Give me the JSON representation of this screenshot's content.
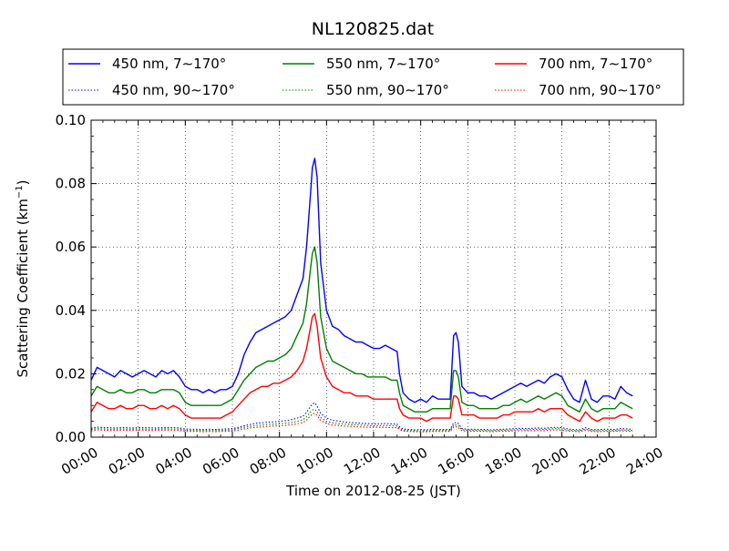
{
  "chart_data": {
    "type": "line",
    "title": "NL120825.dat",
    "xlabel": "Time on 2012-08-25 (JST)",
    "ylabel_prefix": "Scattering Coefficient (km",
    "ylabel_exp": "−1",
    "ylabel_suffix": ")",
    "xlim": [
      0,
      24
    ],
    "ylim": [
      0,
      0.1
    ],
    "x_unit": "hour",
    "grid": true,
    "legend_placement": "top",
    "x_ticks": [
      0,
      2,
      4,
      6,
      8,
      10,
      12,
      14,
      16,
      18,
      20,
      22,
      24
    ],
    "x_tick_labels": [
      "00:00",
      "02:00",
      "04:00",
      "06:00",
      "08:00",
      "10:00",
      "12:00",
      "14:00",
      "16:00",
      "18:00",
      "20:00",
      "22:00",
      "24:00"
    ],
    "y_ticks": [
      0,
      0.02,
      0.04,
      0.06,
      0.08,
      0.1
    ],
    "y_tick_labels": [
      "0.00",
      "0.02",
      "0.04",
      "0.06",
      "0.08",
      "0.10"
    ],
    "x": [
      0.0,
      0.25,
      0.5,
      0.75,
      1.0,
      1.25,
      1.5,
      1.75,
      2.0,
      2.25,
      2.5,
      2.75,
      3.0,
      3.25,
      3.5,
      3.75,
      4.0,
      4.25,
      4.5,
      4.75,
      5.0,
      5.25,
      5.5,
      5.75,
      6.0,
      6.25,
      6.5,
      6.75,
      7.0,
      7.25,
      7.5,
      7.75,
      8.0,
      8.25,
      8.5,
      8.75,
      9.0,
      9.15,
      9.3,
      9.4,
      9.5,
      9.6,
      9.75,
      10.0,
      10.25,
      10.5,
      10.75,
      11.0,
      11.25,
      11.5,
      11.75,
      12.0,
      12.25,
      12.5,
      12.75,
      13.0,
      13.1,
      13.25,
      13.5,
      13.75,
      14.0,
      14.25,
      14.5,
      14.75,
      15.0,
      15.25,
      15.4,
      15.5,
      15.6,
      15.75,
      16.0,
      16.25,
      16.5,
      16.75,
      17.0,
      17.25,
      17.5,
      17.75,
      18.0,
      18.25,
      18.5,
      18.75,
      19.0,
      19.25,
      19.5,
      19.75,
      20.0,
      20.25,
      20.5,
      20.75,
      21.0,
      21.25,
      21.5,
      21.75,
      22.0,
      22.25,
      22.5,
      22.75,
      23.0
    ],
    "series": [
      {
        "name": "450 nm, 7∼170°",
        "color": "#0000ff",
        "style": "solid",
        "values": [
          0.018,
          0.022,
          0.021,
          0.02,
          0.019,
          0.021,
          0.02,
          0.019,
          0.02,
          0.021,
          0.02,
          0.019,
          0.021,
          0.02,
          0.021,
          0.019,
          0.016,
          0.015,
          0.015,
          0.014,
          0.015,
          0.014,
          0.015,
          0.015,
          0.016,
          0.02,
          0.026,
          0.03,
          0.033,
          0.034,
          0.035,
          0.036,
          0.037,
          0.038,
          0.04,
          0.045,
          0.05,
          0.06,
          0.075,
          0.085,
          0.088,
          0.082,
          0.055,
          0.04,
          0.035,
          0.034,
          0.032,
          0.031,
          0.03,
          0.03,
          0.029,
          0.028,
          0.028,
          0.029,
          0.028,
          0.027,
          0.02,
          0.014,
          0.012,
          0.011,
          0.012,
          0.011,
          0.013,
          0.012,
          0.012,
          0.012,
          0.032,
          0.033,
          0.03,
          0.016,
          0.014,
          0.014,
          0.013,
          0.013,
          0.012,
          0.013,
          0.014,
          0.015,
          0.016,
          0.017,
          0.016,
          0.017,
          0.018,
          0.017,
          0.019,
          0.02,
          0.019,
          0.015,
          0.012,
          0.011,
          0.018,
          0.012,
          0.011,
          0.013,
          0.013,
          0.012,
          0.016,
          0.014,
          0.013
        ]
      },
      {
        "name": "550 nm, 7∼170°",
        "color": "#008000",
        "style": "solid",
        "values": [
          0.013,
          0.016,
          0.015,
          0.014,
          0.014,
          0.015,
          0.014,
          0.014,
          0.015,
          0.015,
          0.014,
          0.014,
          0.015,
          0.015,
          0.015,
          0.014,
          0.011,
          0.01,
          0.01,
          0.01,
          0.01,
          0.01,
          0.01,
          0.011,
          0.012,
          0.015,
          0.018,
          0.02,
          0.022,
          0.023,
          0.024,
          0.024,
          0.025,
          0.026,
          0.028,
          0.032,
          0.036,
          0.042,
          0.052,
          0.058,
          0.06,
          0.055,
          0.038,
          0.028,
          0.024,
          0.023,
          0.022,
          0.021,
          0.02,
          0.02,
          0.019,
          0.019,
          0.019,
          0.019,
          0.018,
          0.018,
          0.014,
          0.01,
          0.009,
          0.008,
          0.008,
          0.008,
          0.009,
          0.009,
          0.009,
          0.009,
          0.021,
          0.021,
          0.019,
          0.011,
          0.01,
          0.01,
          0.009,
          0.009,
          0.009,
          0.009,
          0.01,
          0.01,
          0.011,
          0.012,
          0.011,
          0.012,
          0.013,
          0.012,
          0.013,
          0.014,
          0.013,
          0.01,
          0.009,
          0.008,
          0.012,
          0.009,
          0.008,
          0.009,
          0.009,
          0.009,
          0.011,
          0.01,
          0.009
        ]
      },
      {
        "name": "700 nm, 7∼170°",
        "color": "#ff0000",
        "style": "solid",
        "values": [
          0.008,
          0.011,
          0.01,
          0.009,
          0.009,
          0.01,
          0.009,
          0.009,
          0.01,
          0.01,
          0.009,
          0.009,
          0.01,
          0.009,
          0.01,
          0.009,
          0.007,
          0.006,
          0.006,
          0.006,
          0.006,
          0.006,
          0.006,
          0.007,
          0.008,
          0.01,
          0.012,
          0.014,
          0.015,
          0.016,
          0.016,
          0.017,
          0.017,
          0.018,
          0.019,
          0.021,
          0.024,
          0.028,
          0.034,
          0.038,
          0.039,
          0.035,
          0.025,
          0.019,
          0.016,
          0.015,
          0.014,
          0.014,
          0.013,
          0.013,
          0.013,
          0.012,
          0.012,
          0.012,
          0.012,
          0.012,
          0.009,
          0.007,
          0.006,
          0.006,
          0.006,
          0.005,
          0.006,
          0.006,
          0.006,
          0.006,
          0.013,
          0.013,
          0.012,
          0.007,
          0.007,
          0.007,
          0.006,
          0.006,
          0.006,
          0.006,
          0.007,
          0.007,
          0.008,
          0.008,
          0.008,
          0.008,
          0.009,
          0.008,
          0.009,
          0.009,
          0.009,
          0.007,
          0.006,
          0.005,
          0.008,
          0.006,
          0.005,
          0.006,
          0.006,
          0.006,
          0.007,
          0.007,
          0.006
        ]
      },
      {
        "name": "450 nm, 90∼170°",
        "color": "#0000ff",
        "style": "dotted",
        "values": [
          0.0028,
          0.0032,
          0.003,
          0.003,
          0.0029,
          0.003,
          0.003,
          0.0029,
          0.003,
          0.003,
          0.003,
          0.0029,
          0.003,
          0.003,
          0.0031,
          0.0029,
          0.0026,
          0.0025,
          0.0025,
          0.0024,
          0.0025,
          0.0024,
          0.0025,
          0.0026,
          0.0027,
          0.0031,
          0.0036,
          0.004,
          0.0044,
          0.0045,
          0.0047,
          0.0048,
          0.005,
          0.0052,
          0.0055,
          0.006,
          0.0066,
          0.0078,
          0.0095,
          0.0105,
          0.0108,
          0.0098,
          0.0075,
          0.006,
          0.0053,
          0.0051,
          0.0048,
          0.0046,
          0.0045,
          0.0044,
          0.0043,
          0.0042,
          0.0042,
          0.0043,
          0.0042,
          0.0041,
          0.0033,
          0.0026,
          0.0024,
          0.0023,
          0.0024,
          0.0023,
          0.0025,
          0.0024,
          0.0024,
          0.0024,
          0.0045,
          0.0046,
          0.0043,
          0.0027,
          0.0025,
          0.0025,
          0.0024,
          0.0024,
          0.0023,
          0.0024,
          0.0025,
          0.0026,
          0.0027,
          0.0028,
          0.0027,
          0.0028,
          0.0029,
          0.0028,
          0.003,
          0.0031,
          0.003,
          0.0026,
          0.0024,
          0.0023,
          0.003,
          0.0024,
          0.0023,
          0.0025,
          0.0025,
          0.0024,
          0.0027,
          0.0026,
          0.0025
        ]
      },
      {
        "name": "550 nm, 90∼170°",
        "color": "#008000",
        "style": "dotted",
        "values": [
          0.0024,
          0.0027,
          0.0026,
          0.0025,
          0.0025,
          0.0026,
          0.0025,
          0.0025,
          0.0026,
          0.0026,
          0.0025,
          0.0025,
          0.0026,
          0.0026,
          0.0026,
          0.0025,
          0.0022,
          0.0021,
          0.0021,
          0.0021,
          0.0021,
          0.0021,
          0.0021,
          0.0022,
          0.0023,
          0.0027,
          0.0031,
          0.0034,
          0.0037,
          0.0038,
          0.004,
          0.0041,
          0.0042,
          0.0044,
          0.0046,
          0.005,
          0.0055,
          0.0064,
          0.0078,
          0.0086,
          0.0088,
          0.008,
          0.0062,
          0.005,
          0.0045,
          0.0043,
          0.0041,
          0.004,
          0.0039,
          0.0038,
          0.0037,
          0.0036,
          0.0036,
          0.0037,
          0.0036,
          0.0035,
          0.0028,
          0.0022,
          0.0021,
          0.002,
          0.002,
          0.002,
          0.0021,
          0.0021,
          0.0021,
          0.0021,
          0.0038,
          0.0039,
          0.0036,
          0.0023,
          0.0022,
          0.0022,
          0.0021,
          0.0021,
          0.002,
          0.0021,
          0.0022,
          0.0022,
          0.0023,
          0.0024,
          0.0023,
          0.0024,
          0.0025,
          0.0024,
          0.0026,
          0.0027,
          0.0026,
          0.0022,
          0.0021,
          0.002,
          0.0026,
          0.0021,
          0.002,
          0.0021,
          0.0021,
          0.0021,
          0.0023,
          0.0022,
          0.0021
        ]
      },
      {
        "name": "700 nm, 90∼170°",
        "color": "#ff0000",
        "style": "dotted",
        "values": [
          0.002,
          0.0023,
          0.0022,
          0.0021,
          0.0021,
          0.0022,
          0.0021,
          0.0021,
          0.0022,
          0.0022,
          0.0021,
          0.0021,
          0.0022,
          0.0022,
          0.0022,
          0.0021,
          0.0018,
          0.0018,
          0.0018,
          0.0017,
          0.0018,
          0.0017,
          0.0018,
          0.0018,
          0.0019,
          0.0022,
          0.0026,
          0.0029,
          0.0031,
          0.0032,
          0.0034,
          0.0035,
          0.0036,
          0.0037,
          0.0039,
          0.0042,
          0.0046,
          0.0054,
          0.0066,
          0.0073,
          0.0075,
          0.0068,
          0.0053,
          0.0043,
          0.0038,
          0.0037,
          0.0035,
          0.0034,
          0.0033,
          0.0032,
          0.0031,
          0.0031,
          0.0031,
          0.0031,
          0.003,
          0.003,
          0.0024,
          0.0019,
          0.0018,
          0.0017,
          0.0017,
          0.0017,
          0.0018,
          0.0018,
          0.0018,
          0.0018,
          0.0032,
          0.0033,
          0.003,
          0.002,
          0.0019,
          0.0019,
          0.0018,
          0.0018,
          0.0017,
          0.0018,
          0.0019,
          0.0019,
          0.002,
          0.002,
          0.002,
          0.002,
          0.0021,
          0.002,
          0.0022,
          0.0023,
          0.0022,
          0.0019,
          0.0018,
          0.0017,
          0.0022,
          0.0018,
          0.0017,
          0.0018,
          0.0018,
          0.0018,
          0.002,
          0.0019,
          0.0018
        ]
      }
    ]
  }
}
